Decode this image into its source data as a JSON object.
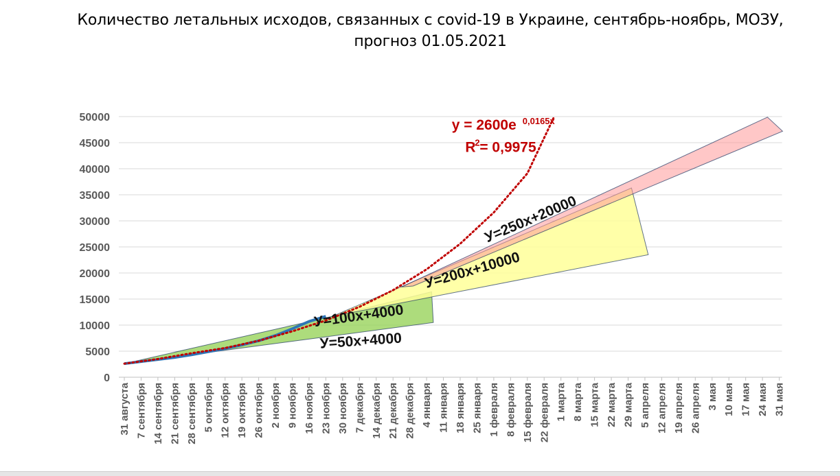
{
  "title_line1": "Количество летальных исходов, связанных с covid-19 в Украине, сентябрь-ноябрь, МОЗУ,",
  "title_line2": "прогноз 01.05.2021",
  "colors": {
    "grid": "#d9d9d9",
    "axis_text": "#595959",
    "actual": "#2e75b6",
    "trend": "#c00000",
    "band_green": "#92d050",
    "band_yellow": "#ffff99",
    "band_pink": "#ff9999",
    "band_edge": "#1f3864"
  },
  "chart_data": {
    "type": "line",
    "title": "Количество летальных исходов, связанных с covid-19 в Украине, сентябрь-ноябрь, МОЗУ, прогноз 01.05.2021",
    "ylim": [
      0,
      50000
    ],
    "y_ticks": [
      "0",
      "5000",
      "10000",
      "15000",
      "20000",
      "25000",
      "30000",
      "35000",
      "40000",
      "45000",
      "50000"
    ],
    "categories": [
      "31 августа",
      "7 сентября",
      "14 сентября",
      "21 сентября",
      "28 сентября",
      "5 октября",
      "12 октября",
      "19 октября",
      "26 октября",
      "2 ноября",
      "9 ноября",
      "16 ноября",
      "23 ноября",
      "30 ноября",
      "7 декабря",
      "14 декабря",
      "21 декабря",
      "28 декабря",
      "4 января",
      "11 января",
      "18 января",
      "25 января",
      "1 февраля",
      "8 февраля",
      "15 февраля",
      "22 февраля",
      "1 марта",
      "8 марта",
      "15 марта",
      "22 марта",
      "29 марта",
      "5 апреля",
      "12 апреля",
      "19 апреля",
      "26 апреля",
      "3 мая",
      "10 мая",
      "17 мая",
      "24 мая",
      "31 мая"
    ],
    "series": [
      {
        "kind": "actual",
        "points": [
          [
            0,
            2600
          ],
          [
            1,
            3000
          ],
          [
            2,
            3400
          ],
          [
            3,
            3800
          ],
          [
            4,
            4300
          ],
          [
            5,
            4900
          ],
          [
            6,
            5500
          ],
          [
            7,
            6200
          ],
          [
            8,
            7000
          ],
          [
            9,
            8000
          ],
          [
            10,
            9300
          ],
          [
            11,
            10700
          ],
          [
            12,
            11700
          ]
        ]
      },
      {
        "kind": "trend",
        "points": [
          [
            0,
            2600
          ],
          [
            2,
            3500
          ],
          [
            4,
            4600
          ],
          [
            6,
            5600
          ],
          [
            8,
            7000
          ],
          [
            10,
            8800
          ],
          [
            12,
            10900
          ],
          [
            14,
            13500
          ],
          [
            16,
            16700
          ],
          [
            18,
            20700
          ],
          [
            20,
            25600
          ],
          [
            22,
            31600
          ],
          [
            24,
            39100
          ],
          [
            25.6,
            50000
          ]
        ]
      }
    ],
    "bands": [
      {
        "name": "green",
        "polygon": [
          [
            0,
            2600
          ],
          [
            12.4,
            11700
          ],
          [
            18.3,
            16400
          ],
          [
            18.4,
            10500
          ]
        ]
      },
      {
        "name": "yellow",
        "polygon": [
          [
            12.4,
            11700
          ],
          [
            30.2,
            36300
          ],
          [
            31.2,
            23500
          ]
        ]
      },
      {
        "name": "pink",
        "polygon": [
          [
            16.5,
            17300
          ],
          [
            38.3,
            49900
          ],
          [
            39.2,
            47200
          ],
          [
            17.2,
            17500
          ]
        ]
      }
    ],
    "annotations": [
      {
        "id": "exp",
        "text": "y = 2600e",
        "sup": "0,0165x",
        "x": 19.5,
        "y": 47500,
        "color": "#c00000"
      },
      {
        "id": "r2",
        "text": "R",
        "sup": "2",
        "rest": " = 0,9975",
        "x": 20.3,
        "y": 43200,
        "color": "#c00000"
      },
      {
        "id": "l250",
        "text": "У=250х+20000",
        "x": 24.3,
        "y": 29500,
        "angle": -23
      },
      {
        "id": "l200",
        "text": "У=200х+10000",
        "x": 20.8,
        "y": 19700,
        "angle": -16
      },
      {
        "id": "l100",
        "text": "У=100х+4000",
        "x": 14.0,
        "y": 10900,
        "angle": -8
      },
      {
        "id": "l50",
        "text": "У=50х+4000",
        "x": 14.1,
        "y": 6100,
        "angle": -4
      }
    ]
  }
}
